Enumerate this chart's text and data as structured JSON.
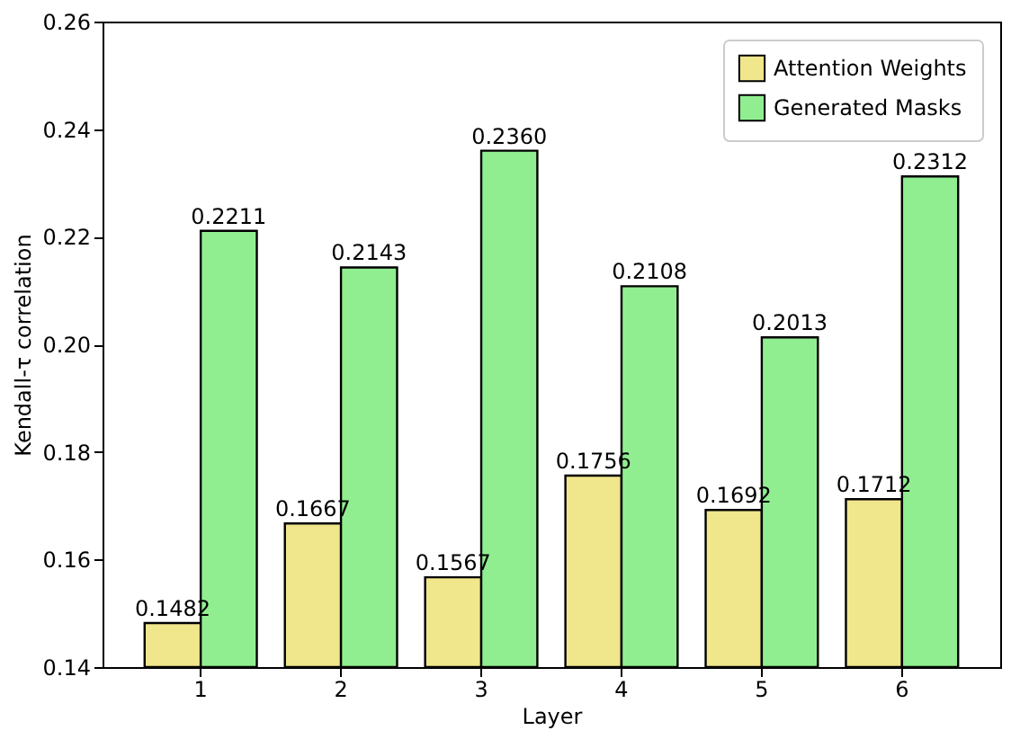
{
  "chart_data": {
    "type": "bar",
    "xlabel": "Layer",
    "ylabel": "Kendall-τ correlation",
    "categories": [
      "1",
      "2",
      "3",
      "4",
      "5",
      "6"
    ],
    "series": [
      {
        "name": "Attention Weights",
        "color": "#f0e68c",
        "values": [
          0.1482,
          0.1667,
          0.1567,
          0.1756,
          0.1692,
          0.1712
        ],
        "value_labels": [
          "0.1482",
          "0.1667",
          "0.1567",
          "0.1756",
          "0.1692",
          "0.1712"
        ]
      },
      {
        "name": "Generated Masks",
        "color": "#90ee90",
        "values": [
          0.2211,
          0.2143,
          0.236,
          0.2108,
          0.2013,
          0.2312
        ],
        "value_labels": [
          "0.2211",
          "0.2143",
          "0.2360",
          "0.2108",
          "0.2013",
          "0.2312"
        ]
      }
    ],
    "ylim": [
      0.14,
      0.26
    ],
    "yticks": [
      0.14,
      0.16,
      0.18,
      {
        "value": 0.2,
        "label": "0.20"
      },
      0.22,
      0.24,
      0.26
    ],
    "grid": false,
    "legend": "top right"
  }
}
